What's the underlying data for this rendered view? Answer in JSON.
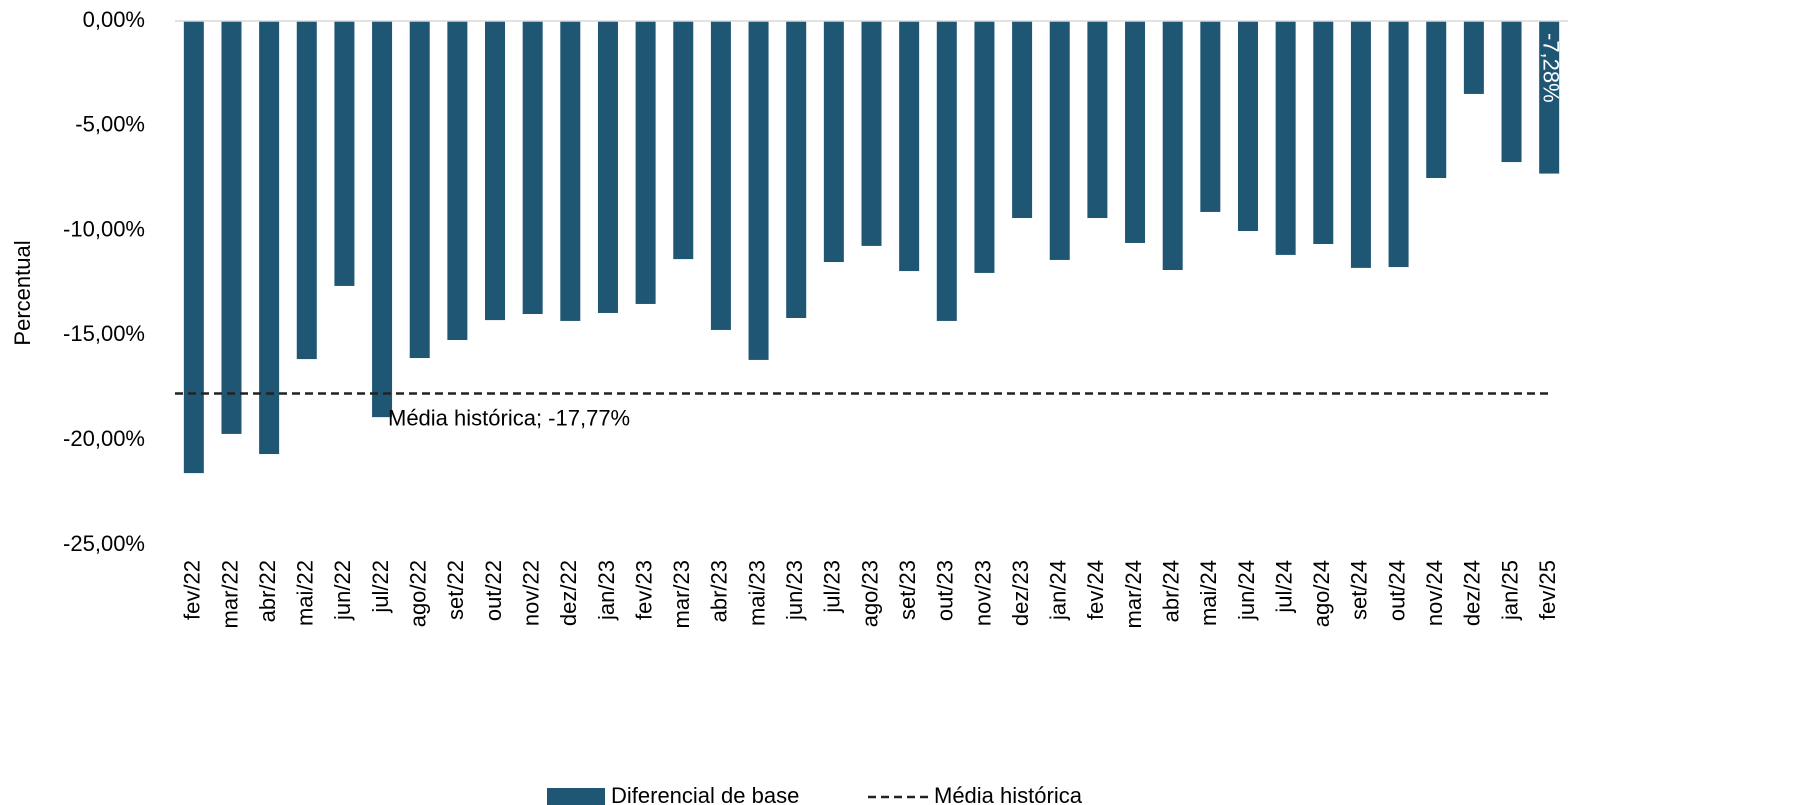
{
  "chart_data": {
    "type": "bar",
    "y_label": "Percentual",
    "categories": [
      "fev/22",
      "mar/22",
      "abr/22",
      "mai/22",
      "jun/22",
      "jul/22",
      "ago/22",
      "set/22",
      "out/22",
      "nov/22",
      "dez/22",
      "jan/23",
      "fev/23",
      "mar/23",
      "abr/23",
      "mai/23",
      "jun/23",
      "jul/23",
      "ago/23",
      "set/23",
      "out/23",
      "nov/23",
      "dez/23",
      "jan/24",
      "fev/24",
      "mar/24",
      "abr/24",
      "mai/24",
      "jun/24",
      "jul/24",
      "ago/24",
      "set/24",
      "out/24",
      "nov/24",
      "dez/24",
      "jan/25",
      "fev/25"
    ],
    "series": [
      {
        "name": "Diferencial de base",
        "color": "#1f5673",
        "values": [
          -21.57,
          -19.7,
          -20.66,
          -16.13,
          -12.64,
          -18.9,
          -16.08,
          -15.22,
          -14.27,
          -13.98,
          -14.31,
          -13.93,
          -13.5,
          -11.36,
          -14.74,
          -16.17,
          -14.17,
          -11.5,
          -10.73,
          -11.93,
          -14.31,
          -12.02,
          -9.4,
          -11.4,
          -9.4,
          -10.59,
          -11.88,
          -9.11,
          -10.02,
          -11.16,
          -10.64,
          -11.78,
          -11.74,
          -7.49,
          -3.48,
          -6.73,
          -7.28
        ],
        "value_labels": [
          null,
          null,
          null,
          null,
          null,
          null,
          null,
          null,
          null,
          null,
          null,
          null,
          null,
          null,
          null,
          null,
          null,
          null,
          null,
          null,
          null,
          null,
          null,
          null,
          null,
          null,
          null,
          null,
          null,
          null,
          null,
          null,
          null,
          null,
          null,
          null,
          "-7,28%"
        ]
      }
    ],
    "reference_line": {
      "name": "Média histórica",
      "value": -17.77,
      "label": "Média histórica; -17,77%",
      "color": "#222222"
    },
    "ylim": [
      -25,
      0
    ],
    "yticks": [
      {
        "value": 0,
        "label": "0,00%"
      },
      {
        "value": -5,
        "label": "-5,00%"
      },
      {
        "value": -10,
        "label": "-10,00%"
      },
      {
        "value": -15,
        "label": "-15,00%"
      },
      {
        "value": -20,
        "label": "-20,00%"
      },
      {
        "value": -25,
        "label": "-25,00%"
      }
    ],
    "legend": "bottom"
  }
}
